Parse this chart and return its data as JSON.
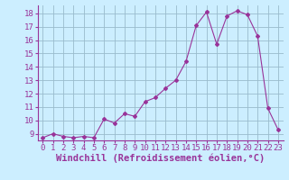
{
  "x": [
    0,
    1,
    2,
    3,
    4,
    5,
    6,
    7,
    8,
    9,
    10,
    11,
    12,
    13,
    14,
    15,
    16,
    17,
    18,
    19,
    20,
    21,
    22,
    23
  ],
  "y": [
    8.7,
    9.0,
    8.8,
    8.7,
    8.8,
    8.7,
    10.1,
    9.8,
    10.5,
    10.3,
    11.4,
    11.7,
    12.4,
    13.0,
    14.4,
    17.1,
    18.1,
    15.7,
    17.8,
    18.2,
    17.9,
    16.3,
    10.9,
    9.3
  ],
  "line_color": "#993399",
  "marker": "D",
  "marker_size": 2.0,
  "bg_color": "#cceeff",
  "grid_color": "#99bbcc",
  "xlabel": "Windchill (Refroidissement éolien,°C)",
  "ylim": [
    8.5,
    18.6
  ],
  "xlim": [
    -0.5,
    23.5
  ],
  "yticks": [
    9,
    10,
    11,
    12,
    13,
    14,
    15,
    16,
    17,
    18
  ],
  "xticks": [
    0,
    1,
    2,
    3,
    4,
    5,
    6,
    7,
    8,
    9,
    10,
    11,
    12,
    13,
    14,
    15,
    16,
    17,
    18,
    19,
    20,
    21,
    22,
    23
  ],
  "label_color": "#993399",
  "tick_color": "#993399",
  "font_size": 6.5,
  "xlabel_fontsize": 7.5,
  "linewidth": 0.8
}
